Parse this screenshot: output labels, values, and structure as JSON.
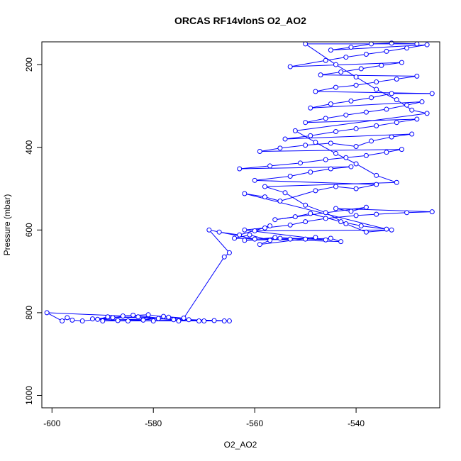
{
  "chart_data": {
    "type": "scatter",
    "title": "ORCAS RF14vlonS O2_AO2",
    "xlabel": "O2_AO2",
    "ylabel": "Pressure (mbar)",
    "xlim": [
      -602,
      -523.5
    ],
    "ylim": [
      1030,
      145
    ],
    "y_reversed": true,
    "x_ticks": [
      -600,
      -580,
      -560,
      -540
    ],
    "y_ticks": [
      200,
      400,
      600,
      800,
      1000
    ],
    "marker": "open-circle",
    "connect_points": true,
    "series_color": "#0000ff",
    "points": [
      [
        -590,
        820
      ],
      [
        -585,
        820
      ],
      [
        -580,
        820
      ],
      [
        -575,
        820
      ],
      [
        -570,
        820
      ],
      [
        -566,
        820
      ],
      [
        -592,
        815
      ],
      [
        -588,
        812
      ],
      [
        -583,
        810
      ],
      [
        -579,
        814
      ],
      [
        -576,
        817
      ],
      [
        -584,
        806
      ],
      [
        -594,
        820
      ],
      [
        -596,
        818
      ],
      [
        -597,
        812
      ],
      [
        -598,
        820
      ],
      [
        -601,
        800
      ],
      [
        -586,
        808
      ],
      [
        -581,
        805
      ],
      [
        -577,
        811
      ],
      [
        -573,
        817
      ],
      [
        -571,
        820
      ],
      [
        -568,
        819
      ],
      [
        -565,
        820
      ],
      [
        -589,
        810
      ],
      [
        -591,
        816
      ],
      [
        -587,
        819
      ],
      [
        -582,
        818
      ],
      [
        -578,
        809
      ],
      [
        -574,
        813
      ],
      [
        -566,
        665
      ],
      [
        -565,
        655
      ],
      [
        -569,
        600
      ],
      [
        -560,
        622
      ],
      [
        -555,
        620
      ],
      [
        -550,
        622
      ],
      [
        -545,
        620
      ],
      [
        -543,
        628
      ],
      [
        -564,
        620
      ],
      [
        -561,
        612
      ],
      [
        -557,
        625
      ],
      [
        -559,
        635
      ],
      [
        -548,
        618
      ],
      [
        -553,
        622
      ],
      [
        -562,
        625
      ],
      [
        -556,
        618
      ],
      [
        -546,
        624
      ],
      [
        -562,
        600
      ],
      [
        -558,
        595
      ],
      [
        -553,
        588
      ],
      [
        -550,
        580
      ],
      [
        -546,
        572
      ],
      [
        -540,
        565
      ],
      [
        -536,
        562
      ],
      [
        -530,
        558
      ],
      [
        -525,
        556
      ],
      [
        -544,
        548
      ],
      [
        -541,
        555
      ],
      [
        -538,
        545
      ],
      [
        -556,
        575
      ],
      [
        -552,
        568
      ],
      [
        -549,
        560
      ],
      [
        -543,
        580
      ],
      [
        -539,
        590
      ],
      [
        -534,
        598
      ],
      [
        -562,
        512
      ],
      [
        -558,
        520
      ],
      [
        -555,
        530
      ],
      [
        -548,
        505
      ],
      [
        -544,
        495
      ],
      [
        -540,
        500
      ],
      [
        -536,
        490
      ],
      [
        -560,
        480
      ],
      [
        -553,
        470
      ],
      [
        -549,
        460
      ],
      [
        -545,
        452
      ],
      [
        -541,
        447
      ],
      [
        -563,
        452
      ],
      [
        -557,
        445
      ],
      [
        -551,
        438
      ],
      [
        -546,
        430
      ],
      [
        -542,
        425
      ],
      [
        -538,
        420
      ],
      [
        -534,
        412
      ],
      [
        -531,
        405
      ],
      [
        -559,
        410
      ],
      [
        -555,
        402
      ],
      [
        -550,
        395
      ],
      [
        -545,
        390
      ],
      [
        -540,
        398
      ],
      [
        -537,
        385
      ],
      [
        -533,
        375
      ],
      [
        -529,
        368
      ],
      [
        -554,
        380
      ],
      [
        -549,
        372
      ],
      [
        -544,
        362
      ],
      [
        -540,
        355
      ],
      [
        -536,
        348
      ],
      [
        -532,
        340
      ],
      [
        -528,
        332
      ],
      [
        -550,
        340
      ],
      [
        -546,
        330
      ],
      [
        -542,
        322
      ],
      [
        -538,
        315
      ],
      [
        -534,
        308
      ],
      [
        -530,
        298
      ],
      [
        -527,
        290
      ],
      [
        -549,
        305
      ],
      [
        -545,
        295
      ],
      [
        -541,
        288
      ],
      [
        -537,
        280
      ],
      [
        -533,
        270
      ],
      [
        -525,
        270
      ],
      [
        -548,
        265
      ],
      [
        -544,
        255
      ],
      [
        -540,
        250
      ],
      [
        -536,
        242
      ],
      [
        -532,
        235
      ],
      [
        -528,
        228
      ],
      [
        -547,
        225
      ],
      [
        -543,
        218
      ],
      [
        -539,
        210
      ],
      [
        -535,
        202
      ],
      [
        -531,
        195
      ],
      [
        -553,
        205
      ],
      [
        -546,
        190
      ],
      [
        -542,
        182
      ],
      [
        -538,
        175
      ],
      [
        -534,
        168
      ],
      [
        -530,
        160
      ],
      [
        -526,
        152
      ],
      [
        -545,
        165
      ],
      [
        -541,
        158
      ],
      [
        -537,
        150
      ],
      [
        -533,
        148
      ],
      [
        -528,
        150
      ],
      [
        -550,
        150
      ],
      [
        -544,
        200
      ],
      [
        -540,
        230
      ],
      [
        -536,
        260
      ],
      [
        -532,
        285
      ],
      [
        -529,
        310
      ],
      [
        -526,
        318
      ],
      [
        -552,
        360
      ],
      [
        -548,
        388
      ],
      [
        -544,
        415
      ],
      [
        -540,
        440
      ],
      [
        -536,
        468
      ],
      [
        -532,
        485
      ],
      [
        -558,
        495
      ],
      [
        -554,
        510
      ],
      [
        -550,
        540
      ],
      [
        -546,
        558
      ],
      [
        -542,
        585
      ],
      [
        -538,
        605
      ],
      [
        -533,
        600
      ],
      [
        -560,
        602
      ],
      [
        -557,
        590
      ],
      [
        -563,
        612
      ],
      [
        -567,
        605
      ]
    ]
  }
}
